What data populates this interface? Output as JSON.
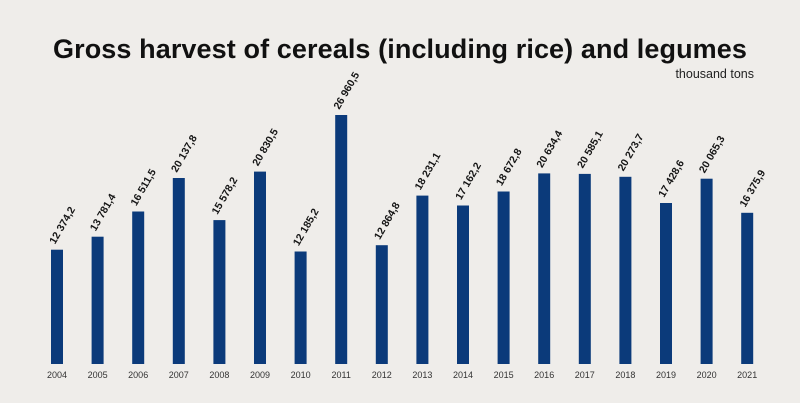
{
  "chart_data": {
    "type": "bar",
    "title": "Gross harvest of cereals (including rice) and legumes",
    "subtitle": "thousand tons",
    "xlabel": "",
    "ylabel": "",
    "ylim": [
      0,
      30000
    ],
    "grid": false,
    "legend": "none",
    "bar_color": "#0b3a7a",
    "categories": [
      "2004",
      "2005",
      "2006",
      "2007",
      "2008",
      "2009",
      "2010",
      "2011",
      "2012",
      "2013",
      "2014",
      "2015",
      "2016",
      "2017",
      "2018",
      "2019",
      "2020",
      "2021"
    ],
    "values": [
      12374.2,
      13781.4,
      16511.5,
      20137.8,
      15578.2,
      20830.5,
      12185.2,
      26960.5,
      12864.8,
      18231.1,
      17162.2,
      18672.8,
      20634.4,
      20585.1,
      20273.7,
      17428.6,
      20065.3,
      16375.9
    ],
    "labels": [
      "12 374,2",
      "13 781,4",
      "16 511,5",
      "20 137,8",
      "15 578,2",
      "20 830,5",
      "12 185,2",
      "26 960,5",
      "12 864,8",
      "18 231,1",
      "17 162,2",
      "18 672,8",
      "20 634,4",
      "20 585,1",
      "20 273,7",
      "17 428,6",
      "20 065,3",
      "16 375,9"
    ]
  }
}
